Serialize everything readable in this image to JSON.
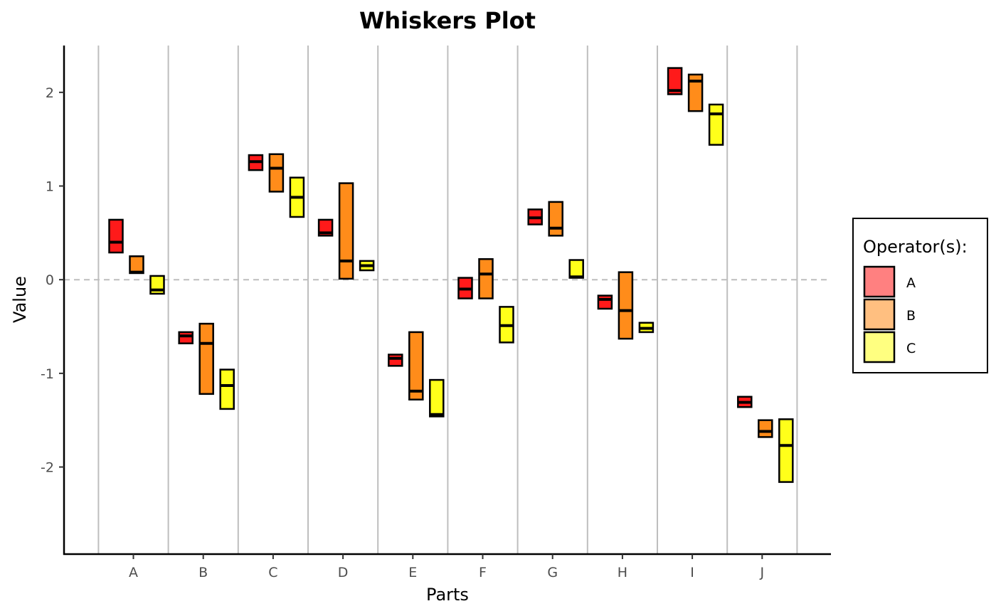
{
  "chart_data": {
    "type": "box",
    "title": "Whiskers Plot",
    "xlabel": "Parts",
    "ylabel": "Value",
    "categories": [
      "A",
      "B",
      "C",
      "D",
      "E",
      "F",
      "G",
      "H",
      "I",
      "J"
    ],
    "ylim": [
      -2.93,
      2.5
    ],
    "yticks": [
      -2,
      -1,
      0,
      1,
      2
    ],
    "ytick_labels": [
      "-2",
      "-1",
      "0",
      "1",
      "2"
    ],
    "reference_line": {
      "y": 0,
      "style": "dashed"
    },
    "grid": {
      "vertical_separators": true,
      "horizontal": false
    },
    "legend": {
      "title": "Operator(s):",
      "position": "right"
    },
    "series": [
      {
        "name": "A",
        "fill_color": "#ff1a1a",
        "legend_color": "#ff8080",
        "boxes": [
          {
            "low": 0.29,
            "high": 0.64,
            "median": 0.4
          },
          {
            "low": -0.68,
            "high": -0.56,
            "median": -0.6
          },
          {
            "low": 1.17,
            "high": 1.33,
            "median": 1.26
          },
          {
            "low": 0.47,
            "high": 0.64,
            "median": 0.5
          },
          {
            "low": -0.92,
            "high": -0.8,
            "median": -0.84
          },
          {
            "low": -0.2,
            "high": 0.02,
            "median": -0.1
          },
          {
            "low": 0.59,
            "high": 0.75,
            "median": 0.66
          },
          {
            "low": -0.31,
            "high": -0.17,
            "median": -0.21
          },
          {
            "low": 1.98,
            "high": 2.26,
            "median": 2.02
          },
          {
            "low": -1.36,
            "high": -1.25,
            "median": -1.31
          }
        ]
      },
      {
        "name": "B",
        "fill_color": "#ff8c1a",
        "legend_color": "#ffbf80",
        "boxes": [
          {
            "low": 0.07,
            "high": 0.25,
            "median": 0.08
          },
          {
            "low": -1.22,
            "high": -0.47,
            "median": -0.68
          },
          {
            "low": 0.94,
            "high": 1.34,
            "median": 1.19
          },
          {
            "low": 0.01,
            "high": 1.03,
            "median": 0.2
          },
          {
            "low": -1.28,
            "high": -0.56,
            "median": -1.19
          },
          {
            "low": -0.2,
            "high": 0.22,
            "median": 0.06
          },
          {
            "low": 0.47,
            "high": 0.83,
            "median": 0.55
          },
          {
            "low": -0.63,
            "high": 0.08,
            "median": -0.33
          },
          {
            "low": 1.8,
            "high": 2.19,
            "median": 2.12
          },
          {
            "low": -1.68,
            "high": -1.5,
            "median": -1.62
          }
        ]
      },
      {
        "name": "C",
        "fill_color": "#ffff1a",
        "legend_color": "#ffff80",
        "boxes": [
          {
            "low": -0.15,
            "high": 0.04,
            "median": -0.11
          },
          {
            "low": -1.38,
            "high": -0.96,
            "median": -1.13
          },
          {
            "low": 0.67,
            "high": 1.09,
            "median": 0.88
          },
          {
            "low": 0.1,
            "high": 0.2,
            "median": 0.15
          },
          {
            "low": -1.46,
            "high": -1.07,
            "median": -1.44
          },
          {
            "low": -0.67,
            "high": -0.29,
            "median": -0.49
          },
          {
            "low": 0.02,
            "high": 0.21,
            "median": 0.03
          },
          {
            "low": -0.56,
            "high": -0.46,
            "median": -0.52
          },
          {
            "low": 1.44,
            "high": 1.87,
            "median": 1.77
          },
          {
            "low": -2.16,
            "high": -1.49,
            "median": -1.77
          }
        ]
      }
    ]
  }
}
